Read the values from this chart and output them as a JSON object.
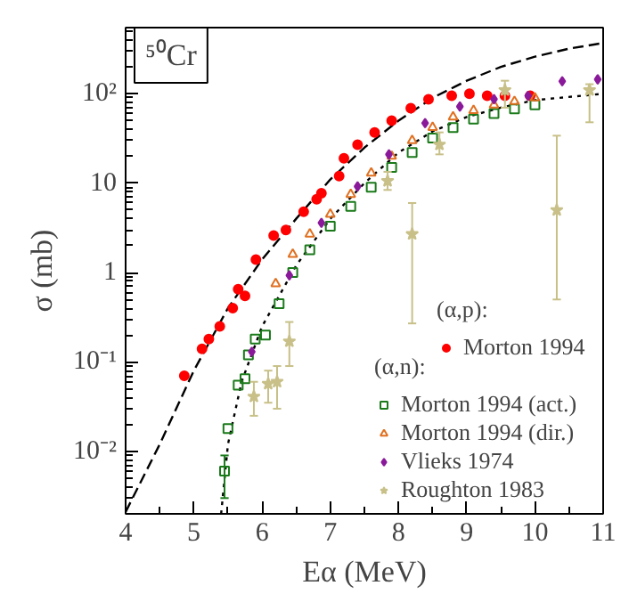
{
  "chart_data": {
    "type": "scatter",
    "xlabel": "Eα (MeV)",
    "ylabel": "σ (mb)",
    "annotations": [
      "⁵⁰Cr",
      "(α,p):",
      "(α,n):"
    ],
    "log": "y",
    "grid": false,
    "legend": "bottom right",
    "xlim": [
      4,
      11
    ],
    "xticks": [
      4,
      5,
      6,
      7,
      8,
      9,
      10,
      11
    ],
    "ylim": [
      0.002,
      550
    ],
    "yticks": [
      {
        "value": 0.01,
        "label": "10⁻²"
      },
      {
        "value": 0.1,
        "label": "10⁻¹"
      },
      1,
      10,
      {
        "value": 100,
        "label": "10²"
      }
    ],
    "series": [
      {
        "type": "line",
        "line_style": "dashed",
        "color": "#000000",
        "x": [
          4,
          4.5,
          5,
          5.5,
          6,
          6.5,
          7,
          7.5,
          8,
          8.5,
          9,
          9.5,
          10,
          10.5,
          11
        ],
        "values": [
          0.0021,
          0.012,
          0.08,
          0.4,
          1.4,
          4,
          11,
          25,
          50,
          90,
          140,
          200,
          260,
          320,
          370
        ]
      },
      {
        "type": "line",
        "line_style": "dotted",
        "color": "#000000",
        "x": [
          5.4,
          5.5,
          5.7,
          6,
          6.5,
          7,
          7.5,
          8,
          8.5,
          9,
          9.5,
          10,
          11
        ],
        "values": [
          0.002,
          0.012,
          0.06,
          0.25,
          1.2,
          4,
          10,
          22,
          38,
          55,
          70,
          85,
          100
        ]
      },
      {
        "name": "Morton 1994",
        "marker": "circle",
        "color": "#ff0000",
        "x": [
          4.86,
          5.12,
          5.22,
          5.38,
          5.57,
          5.65,
          5.75,
          5.91,
          6.17,
          6.35,
          6.61,
          6.8,
          6.87,
          7.13,
          7.2,
          7.4,
          7.65,
          7.9,
          8.18,
          8.44,
          8.78,
          9.04,
          9.3,
          9.56,
          9.93
        ],
        "values": [
          0.07,
          0.14,
          0.18,
          0.25,
          0.4,
          0.65,
          0.55,
          1.4,
          2.6,
          3,
          4.8,
          6.6,
          7.7,
          12,
          19,
          27,
          37,
          50,
          69,
          87,
          95,
          100,
          95,
          95,
          95
        ]
      },
      {
        "name": "Morton 1994 (act.)",
        "marker": "square",
        "color": "#1a7a1a",
        "x": [
          5.45,
          5.5,
          5.65,
          5.75,
          5.8,
          5.9,
          6.05,
          6.25,
          6.45,
          6.7,
          7,
          7.3,
          7.6,
          7.9,
          8.2,
          8.5,
          8.8,
          9.1,
          9.4,
          9.7,
          10
        ],
        "values": [
          0.006,
          0.018,
          0.055,
          0.065,
          0.12,
          0.18,
          0.2,
          0.45,
          1,
          1.8,
          3.3,
          5.5,
          9,
          15,
          22,
          32,
          42,
          52,
          60,
          68,
          75
        ],
        "errors": [
          [
            0.003,
            0.009
          ],
          null,
          null,
          null,
          null,
          null,
          null,
          null,
          null,
          null,
          null,
          null,
          null,
          null,
          null,
          null,
          null,
          null,
          null,
          null,
          null
        ]
      },
      {
        "name": "Morton 1994 (dir.)",
        "marker": "triangle",
        "color": "#e07020",
        "x": [
          6.2,
          6.45,
          6.7,
          7,
          7.3,
          7.6,
          7.9,
          8.2,
          8.5,
          8.8,
          9.1,
          9.4,
          9.7,
          10
        ],
        "values": [
          0.75,
          1.6,
          2.7,
          4.5,
          7.5,
          13,
          20,
          30,
          42,
          55,
          65,
          75,
          82,
          90
        ]
      },
      {
        "name": "Vlieks 1974",
        "marker": "diamond",
        "color": "#8a1a9a",
        "x": [
          5.85,
          6.4,
          6.87,
          7.4,
          7.86,
          8.39,
          8.9,
          9.4,
          9.9,
          10.4,
          10.92
        ],
        "values": [
          0.13,
          0.93,
          3.6,
          9.2,
          21,
          47,
          72,
          87,
          95,
          138,
          145
        ]
      },
      {
        "name": "Roughton 1983",
        "marker": "star",
        "color": "#c8c088",
        "x": [
          5.88,
          6.09,
          6.22,
          6.4,
          7.84,
          8.2,
          8.6,
          9.56,
          10.32,
          10.8
        ],
        "values": [
          0.041,
          0.057,
          0.06,
          0.17,
          10.6,
          2.7,
          27,
          110,
          5,
          110
        ],
        "errors": [
          [
            0.025,
            0.06
          ],
          [
            0.035,
            0.08
          ],
          [
            0.03,
            0.09
          ],
          [
            0.09,
            0.28
          ],
          [
            8.4,
            13.4
          ],
          [
            0.27,
            6
          ],
          [
            21,
            37
          ],
          [
            70,
            140
          ],
          [
            0.5,
            34
          ],
          [
            48,
            128
          ]
        ]
      }
    ]
  }
}
